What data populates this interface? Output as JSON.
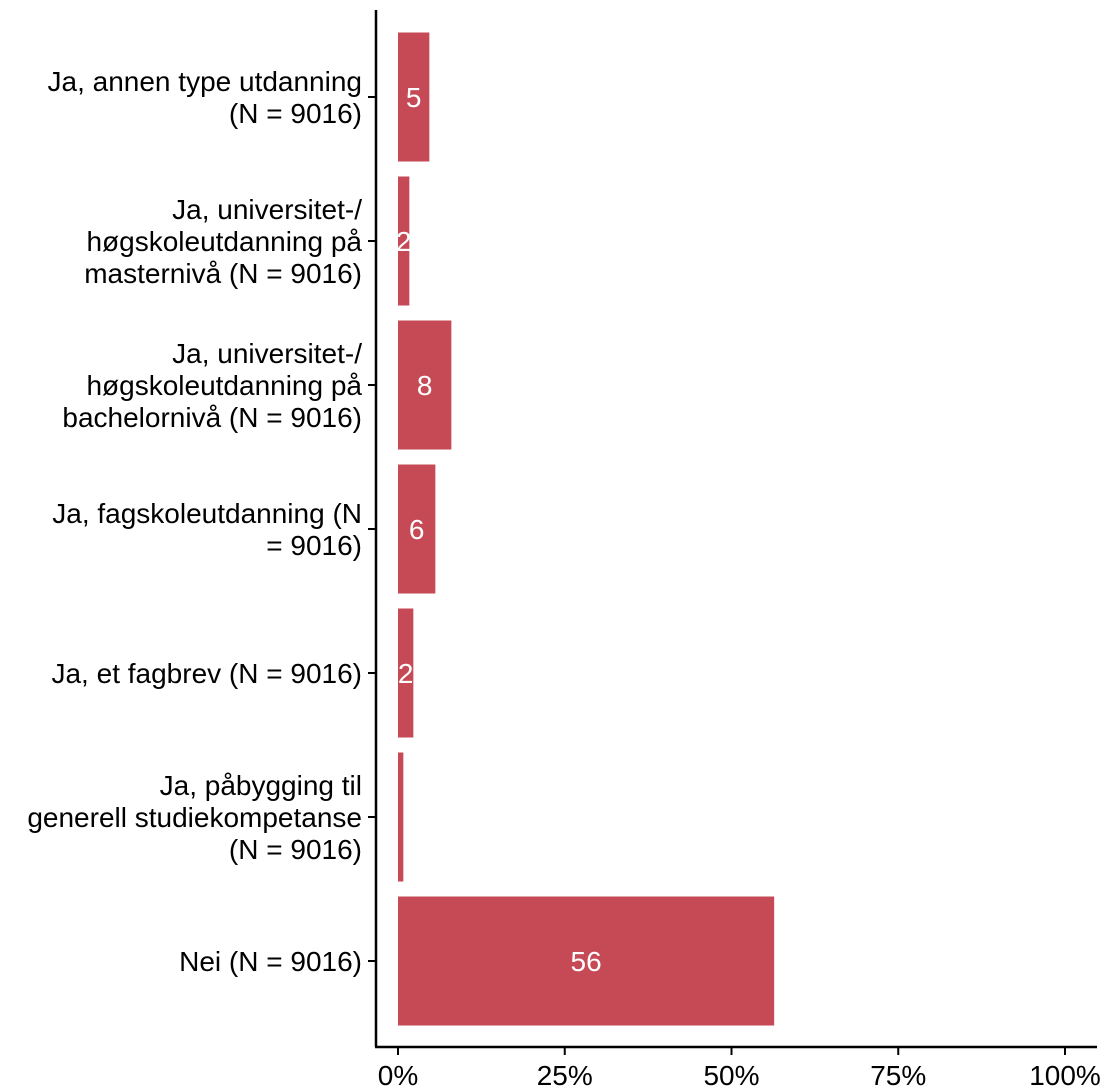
{
  "chart_data": {
    "type": "bar",
    "orientation": "horizontal",
    "categories": [
      "Ja, annen type utdanning\n(N = 9016)",
      "Ja, universitet-/\nhøgskoleutdanning på\nmasternivå (N = 9016)",
      "Ja, universitet-/\nhøgskoleutdanning på\nbachelornivå (N = 9016)",
      "Ja, fagskoleutdanning (N\n= 9016)",
      "Ja, et fagbrev (N = 9016)",
      "Ja, påbygging til\ngenerell studiekompetanse\n(N = 9016)",
      "Nei (N = 9016)"
    ],
    "values": [
      4.7,
      1.7,
      8.0,
      5.6,
      2.3,
      0.8,
      56.4
    ],
    "data_labels": [
      "5",
      "2",
      "8",
      "6",
      "2",
      "",
      "56"
    ],
    "xlim": [
      0,
      100
    ],
    "x_ticks": [
      0,
      25,
      50,
      75,
      100
    ],
    "x_tick_labels": [
      "0%",
      "25%",
      "50%",
      "75%",
      "100%"
    ],
    "title": "",
    "xlabel": "",
    "ylabel": "",
    "bar_color": "#c64a56",
    "label_color": "#ffffff",
    "grid": false,
    "legend": "none"
  }
}
